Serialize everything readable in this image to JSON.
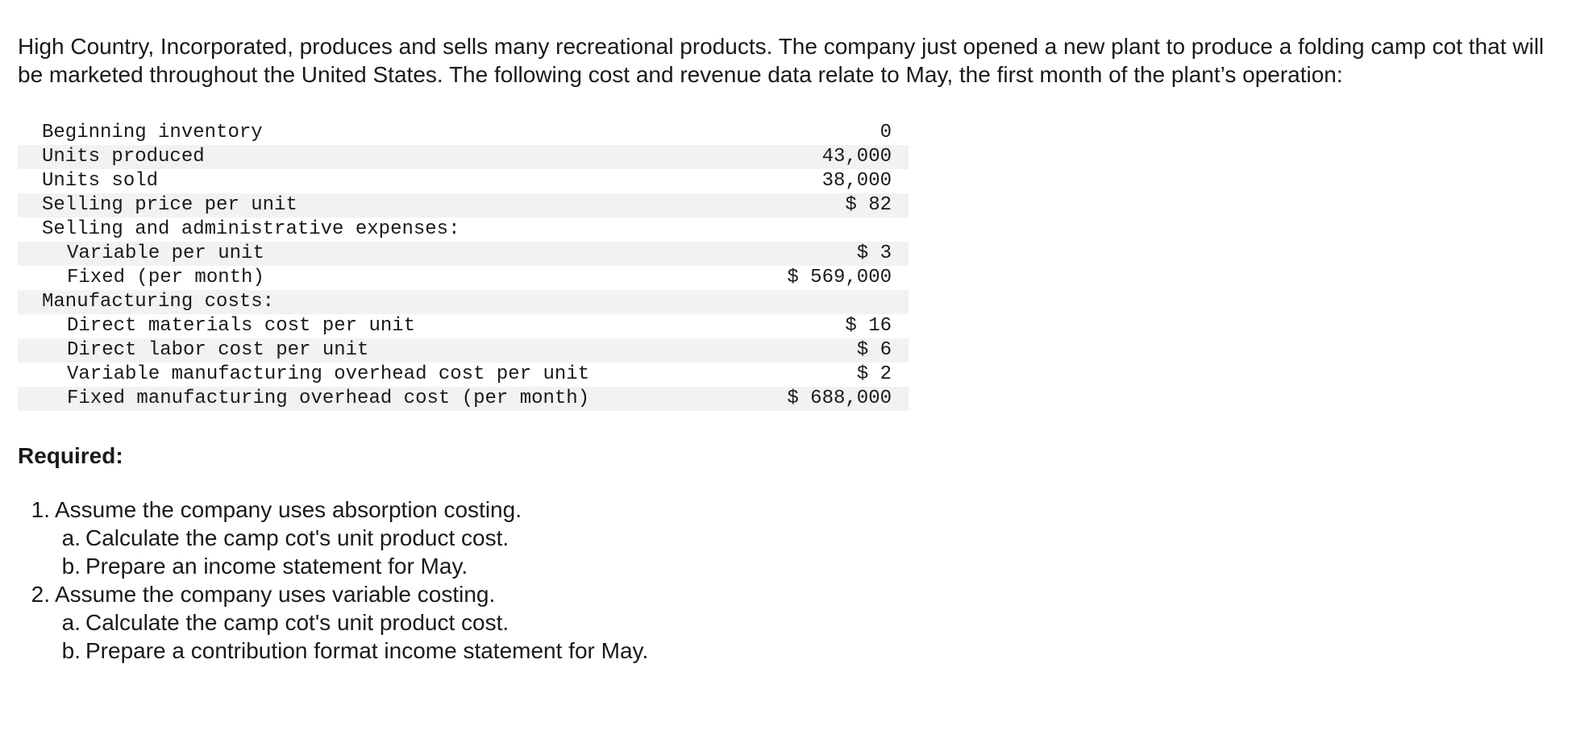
{
  "intro": "High Country, Incorporated, produces and sells many recreational products. The company just opened a new plant to produce a folding camp cot that will be marketed throughout the United States. The following cost and revenue data relate to May, the first month of the plant’s operation:",
  "table": {
    "rows": [
      {
        "label": "Beginning inventory",
        "value": "0"
      },
      {
        "label": "Units produced",
        "value": "43,000"
      },
      {
        "label": "Units sold",
        "value": "38,000"
      },
      {
        "label": "Selling price per unit",
        "value": "$ 82"
      },
      {
        "label": "Selling and administrative expenses:",
        "value": ""
      },
      {
        "label": "Variable per unit",
        "value": "$ 3"
      },
      {
        "label": "Fixed (per month)",
        "value": "$ 569,000"
      },
      {
        "label": "Manufacturing costs:",
        "value": ""
      },
      {
        "label": "Direct materials cost per unit",
        "value": "$ 16"
      },
      {
        "label": "Direct labor cost per unit",
        "value": "$ 6"
      },
      {
        "label": "Variable manufacturing overhead cost per unit",
        "value": "$ 2"
      },
      {
        "label": "Fixed manufacturing overhead cost (per month)",
        "value": "$ 688,000"
      }
    ]
  },
  "required": {
    "heading": "Required:",
    "items": [
      {
        "number": "1.",
        "text": "Assume the company uses absorption costing.",
        "subs": [
          {
            "letter": "a.",
            "text": "Calculate the camp cot's unit product cost."
          },
          {
            "letter": "b.",
            "text": "Prepare an income statement for May."
          }
        ]
      },
      {
        "number": "2.",
        "text": "Assume the company uses variable costing.",
        "subs": [
          {
            "letter": "a.",
            "text": "Calculate the camp cot's unit product cost."
          },
          {
            "letter": "b.",
            "text": "Prepare a contribution format income statement for May."
          }
        ]
      }
    ]
  }
}
